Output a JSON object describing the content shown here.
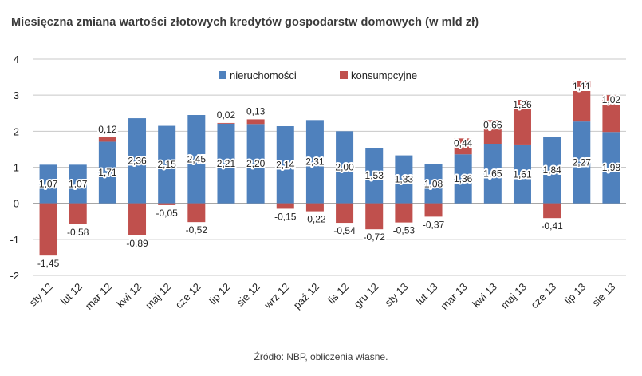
{
  "title": "Miesięczna zmiana wartości złotowych kredytów gospodarstw domowych (w mld zł)",
  "source": "Źródło: NBP, obliczenia własne.",
  "chart_data": {
    "type": "bar",
    "stacked": true,
    "categories": [
      "sty 12",
      "lut 12",
      "mar 12",
      "kwi 12",
      "maj 12",
      "cze 12",
      "lip 12",
      "sie 12",
      "wrz 12",
      "paź 12",
      "lis 12",
      "gru 12",
      "sty 13",
      "lut 13",
      "mar 13",
      "kwi 13",
      "maj 13",
      "cze 13",
      "lip 13",
      "sie 13"
    ],
    "series": [
      {
        "name": "nieruchomości",
        "color": "#4f81bd",
        "values": [
          1.07,
          1.07,
          1.71,
          2.36,
          2.15,
          2.45,
          2.21,
          2.2,
          2.14,
          2.31,
          2.0,
          1.53,
          1.33,
          1.08,
          1.36,
          1.65,
          1.61,
          1.84,
          2.27,
          1.98
        ],
        "labels": [
          "1,07",
          "1,07",
          "1,71",
          "2,36",
          "2,15",
          "2,45",
          "2,21",
          "2,20",
          "2,14",
          "2,31",
          "2,00",
          "1,53",
          "1,33",
          "1,08",
          "1,36",
          "1,65",
          "1,61",
          "1,84",
          "2,27",
          "1,98"
        ]
      },
      {
        "name": "konsumpcyjne",
        "color": "#c0504d",
        "values": [
          -1.45,
          -0.58,
          0.12,
          -0.89,
          -0.05,
          -0.52,
          0.02,
          0.13,
          -0.15,
          -0.22,
          -0.54,
          -0.72,
          -0.53,
          -0.37,
          0.44,
          0.66,
          1.26,
          -0.41,
          1.11,
          1.02
        ],
        "labels": [
          "-1,45",
          "-0,58",
          "0,12",
          "-0,89",
          "-0,05",
          "-0,52",
          "0,02",
          "0,13",
          "-0,15",
          "-0,22",
          "-0,54",
          "-0,72",
          "-0,53",
          "-0,37",
          "0,44",
          "0,66",
          "1,26",
          "-0,41",
          "1,11",
          "1,02"
        ]
      }
    ],
    "ylim": [
      -2,
      4
    ],
    "yticks": [
      "-2",
      "-1",
      "0",
      "1",
      "2",
      "3",
      "4"
    ],
    "grid": true,
    "legend": "top-center"
  }
}
